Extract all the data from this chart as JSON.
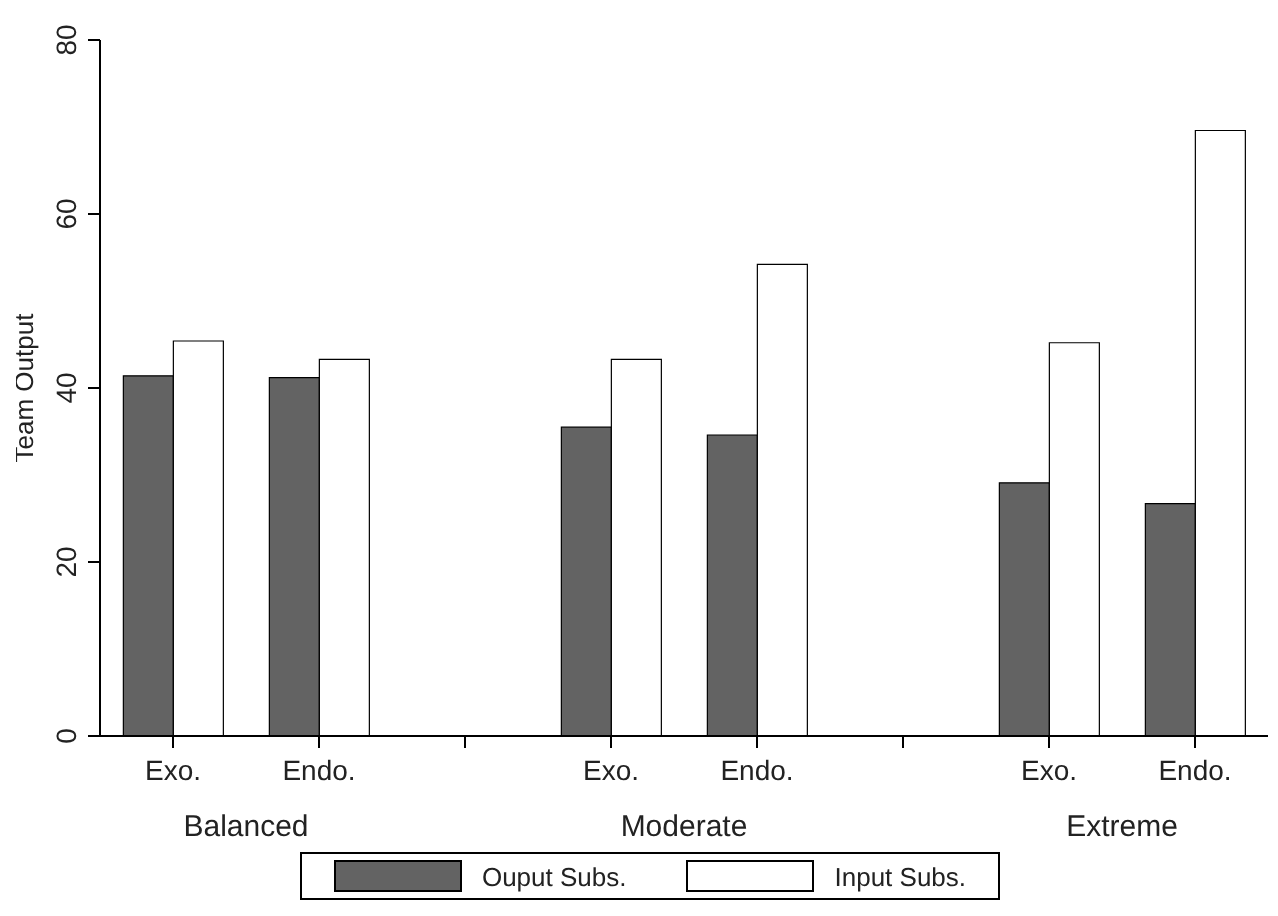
{
  "chart_data": {
    "type": "bar",
    "ylabel": "Team Output",
    "categories": [
      "Exo.",
      "Endo.",
      null,
      "Exo.",
      "Endo.",
      null,
      "Exo.",
      "Endo."
    ],
    "series": [
      {
        "name": "Ouput Subs.",
        "color": "#636363",
        "values": [
          41.4,
          41.2,
          null,
          35.5,
          34.6,
          null,
          29.1,
          26.7
        ]
      },
      {
        "name": "Input Subs.",
        "color": "#ffffff",
        "values": [
          45.4,
          43.3,
          null,
          43.3,
          54.2,
          null,
          45.2,
          69.6
        ]
      }
    ],
    "annotations": [
      "Balanced",
      "Moderate",
      "Extreme"
    ],
    "ylim": [
      0,
      80
    ],
    "yticks": [
      0,
      20,
      40,
      60,
      80
    ],
    "legend": "bottom"
  }
}
